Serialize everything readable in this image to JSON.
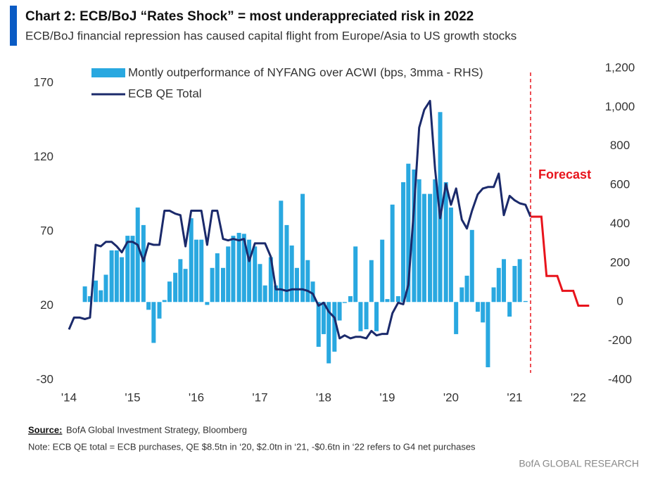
{
  "header": {
    "title": "Chart 2: ECB/BoJ “Rates Shock” = most underappreciated risk in 2022",
    "subtitle": "ECB/BoJ financial repression has caused capital flight from Europe/Asia to US growth stocks"
  },
  "chart_data": {
    "type": "combo",
    "x": [
      2014.0,
      2014.08,
      2014.17,
      2014.25,
      2014.33,
      2014.42,
      2014.5,
      2014.58,
      2014.67,
      2014.75,
      2014.83,
      2014.92,
      2015.0,
      2015.08,
      2015.17,
      2015.25,
      2015.33,
      2015.42,
      2015.5,
      2015.58,
      2015.67,
      2015.75,
      2015.83,
      2015.92,
      2016.0,
      2016.08,
      2016.17,
      2016.25,
      2016.33,
      2016.42,
      2016.5,
      2016.58,
      2016.67,
      2016.75,
      2016.83,
      2016.92,
      2017.0,
      2017.08,
      2017.17,
      2017.25,
      2017.33,
      2017.42,
      2017.5,
      2017.58,
      2017.67,
      2017.75,
      2017.83,
      2017.92,
      2018.0,
      2018.08,
      2018.17,
      2018.25,
      2018.33,
      2018.42,
      2018.5,
      2018.58,
      2018.67,
      2018.75,
      2018.83,
      2018.92,
      2019.0,
      2019.08,
      2019.17,
      2019.25,
      2019.33,
      2019.42,
      2019.5,
      2019.58,
      2019.67,
      2019.75,
      2019.83,
      2019.92,
      2020.0,
      2020.08,
      2020.17,
      2020.25,
      2020.33,
      2020.42,
      2020.5,
      2020.58,
      2020.67,
      2020.75,
      2020.83,
      2020.92,
      2021.0,
      2021.08,
      2021.17,
      2021.25
    ],
    "series": [
      {
        "name": "Montly outperformance of NYFANG over ACWI (bps, 3mma - RHS)",
        "type": "bar",
        "axis": "y2",
        "color": "#29a8e0",
        "values": [
          null,
          null,
          null,
          80,
          30,
          110,
          60,
          140,
          265,
          265,
          230,
          340,
          340,
          485,
          395,
          -40,
          -210,
          -85,
          10,
          105,
          150,
          220,
          170,
          430,
          320,
          320,
          -15,
          175,
          250,
          175,
          285,
          340,
          355,
          350,
          320,
          285,
          195,
          85,
          230,
          85,
          520,
          395,
          290,
          175,
          555,
          215,
          105,
          -230,
          -165,
          -315,
          -255,
          -95,
          -5,
          30,
          285,
          -150,
          -140,
          215,
          -150,
          320,
          15,
          500,
          30,
          615,
          710,
          680,
          630,
          555,
          555,
          630,
          975,
          615,
          485,
          -165,
          75,
          135,
          370,
          -50,
          -105,
          -335,
          75,
          175,
          220,
          -75,
          185,
          220,
          5,
          null
        ]
      },
      {
        "name": "ECB QE Total",
        "type": "line",
        "color": "#1b2a6b",
        "values": [
          4,
          12,
          12,
          11,
          12,
          61,
          60,
          63,
          63,
          60,
          56,
          63,
          63,
          61,
          50,
          62,
          61,
          61,
          84,
          84,
          82,
          81,
          60,
          84,
          84,
          84,
          61,
          84,
          84,
          65,
          64,
          65,
          64,
          65,
          50,
          62,
          62,
          62,
          53,
          31,
          31,
          30,
          31,
          31,
          31,
          30,
          28,
          20,
          22,
          16,
          12,
          -2,
          0,
          -2,
          -1,
          -1,
          -2,
          3,
          0,
          1,
          1,
          15,
          22,
          21,
          34,
          86,
          140,
          152,
          158,
          112,
          79,
          102,
          88,
          99,
          78,
          72,
          84,
          95,
          99,
          100,
          100,
          109,
          81,
          94,
          91,
          89,
          88,
          80
        ]
      }
    ],
    "forecast": {
      "color": "#e8141c",
      "x": [
        2021.25,
        2021.33,
        2021.42,
        2021.5,
        2021.58,
        2021.67,
        2021.75,
        2021.83,
        2021.92,
        2022.0,
        2022.08,
        2022.17
      ],
      "values": [
        80,
        80,
        80,
        40,
        40,
        40,
        30,
        30,
        30,
        20,
        20,
        20
      ]
    },
    "annotation": {
      "text": "Forecast",
      "x": 2021.25,
      "color": "#e8141c"
    },
    "xlim": [
      2014,
      2022.2
    ],
    "xticks": [
      {
        "value": 2014,
        "label": "'14"
      },
      {
        "value": 2015,
        "label": "'15"
      },
      {
        "value": 2016,
        "label": "'16"
      },
      {
        "value": 2017,
        "label": "'17"
      },
      {
        "value": 2018,
        "label": "'18"
      },
      {
        "value": 2019,
        "label": "'19"
      },
      {
        "value": 2020,
        "label": "'20"
      },
      {
        "value": 2021,
        "label": "'21"
      },
      {
        "value": 2022,
        "label": "'22"
      }
    ],
    "ylim": [
      -30,
      180
    ],
    "yticks": [
      -30,
      20,
      70,
      120,
      170
    ],
    "y2lim": [
      -400,
      1200
    ],
    "y2ticks": [
      -400,
      -200,
      0,
      200,
      400,
      600,
      800,
      {
        "value": 1000,
        "label": "1,000"
      },
      {
        "value": 1200,
        "label": "1,200"
      }
    ],
    "grid": false,
    "legend": "top-left"
  },
  "footer": {
    "source_label": "Source:",
    "source": "BofA Global Investment Strategy, Bloomberg",
    "note": "Note: ECB QE total = ECB purchases,  QE $8.5tn in ‘20, $2.0tn in ‘21, -$0.6tn in ‘22 refers to G4 net purchases",
    "brand": "BofA GLOBAL RESEARCH"
  }
}
